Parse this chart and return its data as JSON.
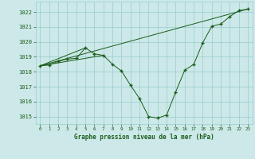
{
  "title": "Graphe pression niveau de la mer (hPa)",
  "bg_color": "#cce8e8",
  "grid_color": "#99cccc",
  "line_color": "#1a5c1a",
  "marker_color": "#1a5c1a",
  "xlim": [
    -0.5,
    23.5
  ],
  "ylim": [
    1014.5,
    1022.7
  ],
  "xticks": [
    0,
    1,
    2,
    3,
    4,
    5,
    6,
    7,
    8,
    9,
    10,
    11,
    12,
    13,
    14,
    15,
    16,
    17,
    18,
    19,
    20,
    21,
    22,
    23
  ],
  "yticks": [
    1015,
    1016,
    1017,
    1018,
    1019,
    1020,
    1021,
    1022
  ],
  "series": [
    [
      0,
      1018.4
    ],
    [
      1,
      1018.45
    ],
    [
      2,
      1018.7
    ],
    [
      3,
      1018.85
    ],
    [
      4,
      1018.9
    ],
    [
      5,
      1019.6
    ],
    [
      6,
      1019.2
    ],
    [
      7,
      1019.1
    ],
    [
      8,
      1018.5
    ],
    [
      9,
      1018.05
    ],
    [
      10,
      1017.1
    ],
    [
      11,
      1016.2
    ],
    [
      12,
      1015.0
    ],
    [
      13,
      1014.9
    ],
    [
      14,
      1015.1
    ],
    [
      15,
      1016.65
    ],
    [
      16,
      1018.1
    ],
    [
      17,
      1018.5
    ],
    [
      18,
      1019.95
    ],
    [
      19,
      1021.05
    ],
    [
      20,
      1021.2
    ],
    [
      21,
      1021.7
    ],
    [
      22,
      1022.1
    ],
    [
      23,
      1022.2
    ]
  ],
  "extra_lines": [
    [
      [
        0,
        23
      ],
      [
        1018.4,
        1022.2
      ]
    ],
    [
      [
        0,
        7
      ],
      [
        1018.4,
        1019.1
      ]
    ],
    [
      [
        0,
        5
      ],
      [
        1018.4,
        1019.6
      ]
    ]
  ]
}
